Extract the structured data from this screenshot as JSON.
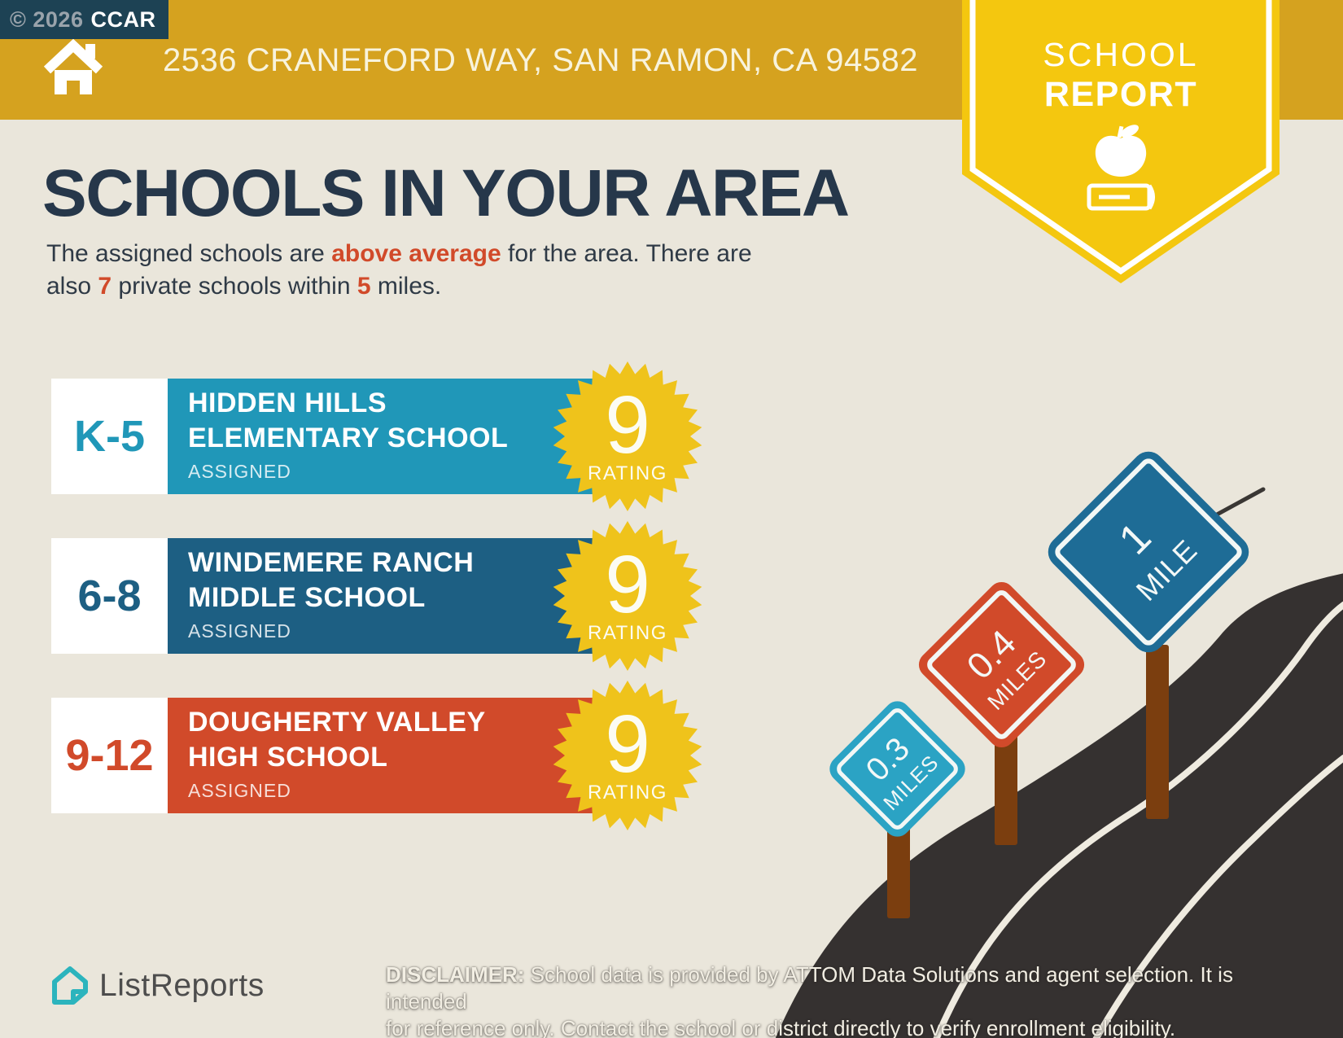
{
  "colors": {
    "bg": "#EAE6DB",
    "gold": "#D5A21F",
    "badge_bg": "#1D4254",
    "badge_gray": "#99A3AB",
    "cream_text": "#F8F3DC",
    "ribbon": "#F4C70F",
    "navy": "#26374A",
    "body_text": "#2F3A46",
    "accent_red": "#D14A2A",
    "star": "#EFC31B",
    "road": "#353130",
    "white_line": "#EFEBE0",
    "post": "#7B3E0F",
    "logo_teal": "#2CB4BD",
    "logo_text": "#4D4D4D",
    "white": "#FFFFFF"
  },
  "header": {
    "copyright": "© 2026",
    "org": "CCAR",
    "address": "2536 CRANEFORD WAY, SAN RAMON, CA 94582"
  },
  "ribbon": {
    "line1": "SCHOOL",
    "line2": "REPORT"
  },
  "main": {
    "title": "SCHOOLS IN YOUR AREA",
    "subtitle": {
      "s1": "The assigned schools are ",
      "s2": "above average",
      "s3": " for the area. There are",
      "s4": "also ",
      "s5": "7",
      "s6": " private schools within ",
      "s7": "5",
      "s8": " miles."
    }
  },
  "schools": [
    {
      "grades": "K-5",
      "name_line1": "HIDDEN HILLS",
      "name_line2": "ELEMENTARY SCHOOL",
      "status": "ASSIGNED",
      "rating": "9",
      "rating_label": "RATING",
      "color": "#2097B8"
    },
    {
      "grades": "6-8",
      "name_line1": "WINDEMERE RANCH",
      "name_line2": "MIDDLE SCHOOL",
      "status": "ASSIGNED",
      "rating": "9",
      "rating_label": "RATING",
      "color": "#1D5F83"
    },
    {
      "grades": "9-12",
      "name_line1": "DOUGHERTY VALLEY",
      "name_line2": "HIGH SCHOOL",
      "status": "ASSIGNED",
      "rating": "9",
      "rating_label": "RATING",
      "color": "#D14A2A"
    }
  ],
  "signs": [
    {
      "value": "0.3",
      "unit": "MILES",
      "color": "#2BA3C4"
    },
    {
      "value": "0.4",
      "unit": "MILES",
      "color": "#D14A2A"
    },
    {
      "value": "1",
      "unit": "MILE",
      "color": "#1E6C96"
    }
  ],
  "footer": {
    "brand": "ListReports",
    "disclaimer_label": "DISCLAIMER:",
    "disclaimer_line1_rest": " School data is provided by ATTOM Data Solutions and agent selection. It is intended",
    "disclaimer_line2": "for reference only. Contact the school or district directly to verify enrollment eligibility."
  }
}
